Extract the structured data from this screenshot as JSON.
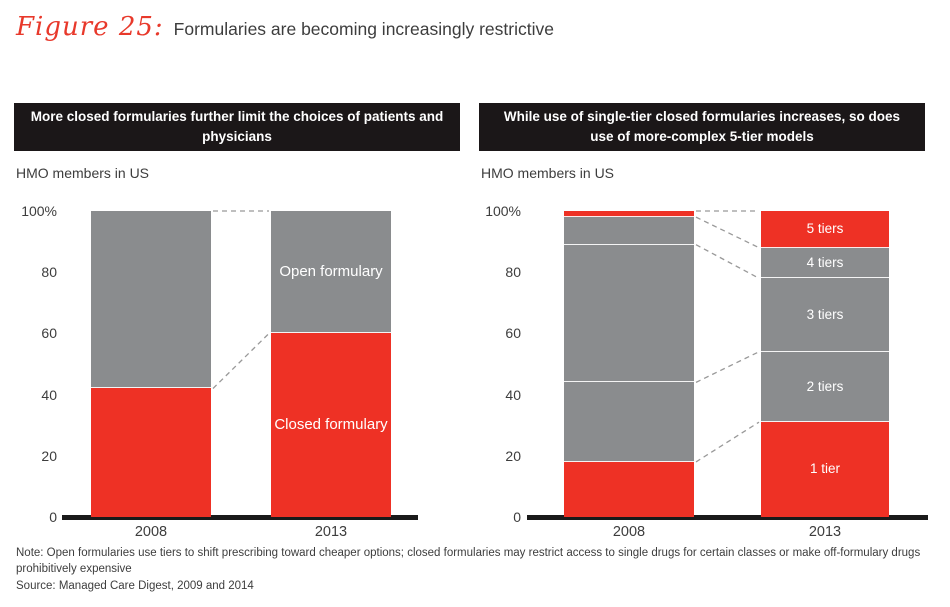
{
  "page": {
    "figure_label": "Figure 25:",
    "title": "Formularies are becoming increasingly restrictive",
    "note": "Note: Open formularies use tiers to shift prescribing toward cheaper options; closed formularies may restrict access to single drugs for certain classes or make off-formulary drugs prohibitively expensive",
    "source": "Source: Managed Care Digest, 2009 and 2014"
  },
  "colors": {
    "red": "#ee3125",
    "gray": "#8a8c8e",
    "header_bg": "#1b1718",
    "axis": "#1a1a1a",
    "connector": "#999999",
    "text": "#3d3d3d"
  },
  "chart_data": [
    {
      "type": "bar",
      "subtype": "stacked-100pct",
      "title": "More closed formularies further limit the choices of patients and physicians",
      "ylabel": "HMO members in US",
      "categories": [
        "2008",
        "2013"
      ],
      "yticks": [
        "100%",
        "80",
        "60",
        "40",
        "20",
        "0"
      ],
      "ylim": [
        0,
        100
      ],
      "grid": false,
      "labels_on_category": "2013",
      "series": [
        {
          "name": "Closed formulary",
          "values": [
            42,
            60
          ],
          "color": "#ee3125"
        },
        {
          "name": "Open formulary",
          "values": [
            58,
            40
          ],
          "color": "#8a8c8e"
        }
      ]
    },
    {
      "type": "bar",
      "subtype": "stacked-100pct",
      "title": "While use of single-tier closed formularies increases, so does use of more-complex 5-tier models",
      "ylabel": "HMO members in US",
      "categories": [
        "2008",
        "2013"
      ],
      "yticks": [
        "100%",
        "80",
        "60",
        "40",
        "20",
        "0"
      ],
      "ylim": [
        0,
        100
      ],
      "grid": false,
      "labels_on_category": "2013",
      "series": [
        {
          "name": "1 tier",
          "values": [
            18,
            31
          ],
          "color": "#ee3125"
        },
        {
          "name": "2 tiers",
          "values": [
            26,
            23
          ],
          "color": "#8a8c8e"
        },
        {
          "name": "3 tiers",
          "values": [
            45,
            24
          ],
          "color": "#8a8c8e"
        },
        {
          "name": "4 tiers",
          "values": [
            9,
            10
          ],
          "color": "#8a8c8e"
        },
        {
          "name": "5 tiers",
          "values": [
            2,
            12
          ],
          "color": "#ee3125"
        }
      ]
    }
  ]
}
